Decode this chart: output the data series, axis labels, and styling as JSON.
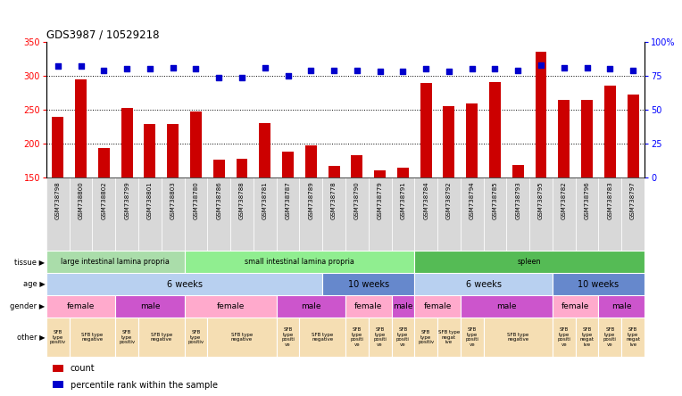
{
  "title": "GDS3987 / 10529218",
  "samples": [
    "GSM738798",
    "GSM738800",
    "GSM738802",
    "GSM738799",
    "GSM738801",
    "GSM738803",
    "GSM738780",
    "GSM738786",
    "GSM738788",
    "GSM738781",
    "GSM738787",
    "GSM738789",
    "GSM738778",
    "GSM738790",
    "GSM738779",
    "GSM738791",
    "GSM738784",
    "GSM738792",
    "GSM738794",
    "GSM738785",
    "GSM738793",
    "GSM738795",
    "GSM738782",
    "GSM738796",
    "GSM738783",
    "GSM738797"
  ],
  "counts": [
    240,
    295,
    193,
    253,
    229,
    229,
    248,
    176,
    178,
    230,
    188,
    197,
    167,
    183,
    160,
    165,
    290,
    255,
    259,
    291,
    169,
    335,
    265,
    265,
    285,
    272
  ],
  "percentiles": [
    82,
    82,
    79,
    80,
    80,
    81,
    80,
    74,
    74,
    81,
    75,
    79,
    79,
    79,
    78,
    78,
    80,
    78,
    80,
    80,
    79,
    83,
    81,
    81,
    80,
    79
  ],
  "bar_color": "#cc0000",
  "dot_color": "#0000cc",
  "ylim_left": [
    150,
    350
  ],
  "ylim_right": [
    0,
    100
  ],
  "yticks_left": [
    150,
    200,
    250,
    300,
    350
  ],
  "yticks_right": [
    0,
    25,
    50,
    75,
    100
  ],
  "ytick_labels_right": [
    "0",
    "25",
    "50",
    "75",
    "100%"
  ],
  "hlines": [
    200,
    250,
    300
  ],
  "tissue_groups": [
    {
      "label": "large intestinal lamina propria",
      "start": 0,
      "end": 6,
      "color": "#aaddaa"
    },
    {
      "label": "small intestinal lamina propria",
      "start": 6,
      "end": 16,
      "color": "#90EE90"
    },
    {
      "label": "spleen",
      "start": 16,
      "end": 26,
      "color": "#55bb55"
    }
  ],
  "age_groups": [
    {
      "label": "6 weeks",
      "start": 0,
      "end": 12,
      "color": "#b8d0f0"
    },
    {
      "label": "10 weeks",
      "start": 12,
      "end": 16,
      "color": "#6688cc"
    },
    {
      "label": "6 weeks",
      "start": 16,
      "end": 22,
      "color": "#b8d0f0"
    },
    {
      "label": "10 weeks",
      "start": 22,
      "end": 26,
      "color": "#6688cc"
    }
  ],
  "gender_groups": [
    {
      "label": "female",
      "start": 0,
      "end": 3,
      "color": "#ffaacc"
    },
    {
      "label": "male",
      "start": 3,
      "end": 6,
      "color": "#cc55cc"
    },
    {
      "label": "female",
      "start": 6,
      "end": 10,
      "color": "#ffaacc"
    },
    {
      "label": "male",
      "start": 10,
      "end": 13,
      "color": "#cc55cc"
    },
    {
      "label": "female",
      "start": 13,
      "end": 15,
      "color": "#ffaacc"
    },
    {
      "label": "male",
      "start": 15,
      "end": 16,
      "color": "#cc55cc"
    },
    {
      "label": "female",
      "start": 16,
      "end": 18,
      "color": "#ffaacc"
    },
    {
      "label": "male",
      "start": 18,
      "end": 22,
      "color": "#cc55cc"
    },
    {
      "label": "female",
      "start": 22,
      "end": 24,
      "color": "#ffaacc"
    },
    {
      "label": "male",
      "start": 24,
      "end": 26,
      "color": "#cc55cc"
    }
  ],
  "other_groups": [
    {
      "label": "SFB\ntype\npositiv",
      "start": 0,
      "end": 1
    },
    {
      "label": "SFB type\nnegative",
      "start": 1,
      "end": 3
    },
    {
      "label": "SFB\ntype\npositiv",
      "start": 3,
      "end": 4
    },
    {
      "label": "SFB type\nnegative",
      "start": 4,
      "end": 6
    },
    {
      "label": "SFB\ntype\npositiv",
      "start": 6,
      "end": 7
    },
    {
      "label": "SFB type\nnegative",
      "start": 7,
      "end": 10
    },
    {
      "label": "SFB\ntype\npositi\nve",
      "start": 10,
      "end": 11
    },
    {
      "label": "SFB type\nnegative",
      "start": 11,
      "end": 13
    },
    {
      "label": "SFB\ntype\npositi\nve",
      "start": 13,
      "end": 14
    },
    {
      "label": "SFB\ntype\npositi\nve",
      "start": 14,
      "end": 15
    },
    {
      "label": "SFB\ntype\npositi\nve",
      "start": 15,
      "end": 16
    },
    {
      "label": "SFB\ntype\npositiv",
      "start": 16,
      "end": 17
    },
    {
      "label": "SFB type\nnegat\nive",
      "start": 17,
      "end": 18
    },
    {
      "label": "SFB\ntype\npositi\nve",
      "start": 18,
      "end": 19
    },
    {
      "label": "SFB type\nnegative",
      "start": 19,
      "end": 22
    },
    {
      "label": "SFB\ntype\npositi\nve",
      "start": 22,
      "end": 23
    },
    {
      "label": "SFB\ntype\nnegat\nive",
      "start": 23,
      "end": 24
    },
    {
      "label": "SFB\ntype\npositi\nve",
      "start": 24,
      "end": 25
    },
    {
      "label": "SFB\ntype\nnegat\nive",
      "start": 25,
      "end": 26
    }
  ],
  "other_color": "#f5deb3",
  "row_labels": [
    "tissue",
    "age",
    "gender",
    "other"
  ],
  "legend_count_color": "#cc0000",
  "legend_dot_color": "#0000cc"
}
